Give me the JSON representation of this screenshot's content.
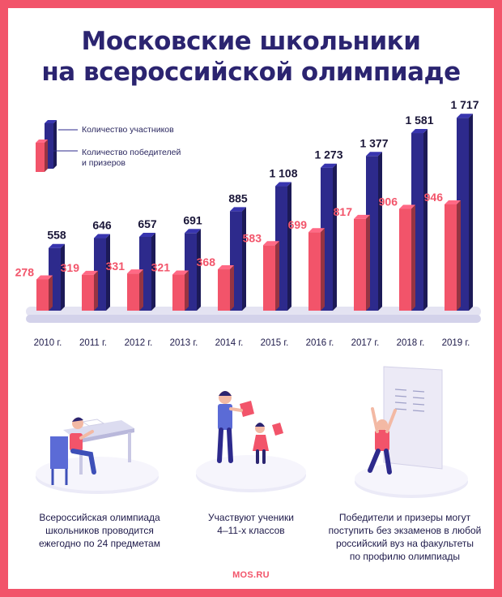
{
  "title_line1": "Московские школьники",
  "title_line2": "на всероссийской олимпиаде",
  "chart_data": {
    "type": "bar",
    "categories": [
      "2010 г.",
      "2011 г.",
      "2012 г.",
      "2013 г.",
      "2014 г.",
      "2015 г.",
      "2016 г.",
      "2017 г.",
      "2018 г.",
      "2019 г."
    ],
    "series": [
      {
        "name": "Количество участников",
        "values": [
          558,
          646,
          657,
          691,
          885,
          1108,
          1273,
          1377,
          1581,
          1717
        ],
        "labels": [
          "558",
          "646",
          "657",
          "691",
          "885",
          "1 108",
          "1 273",
          "1 377",
          "1 581",
          "1 717"
        ],
        "color": "#2d2a8c"
      },
      {
        "name": "Количество победителей и призеров",
        "values": [
          278,
          319,
          331,
          321,
          368,
          583,
          699,
          817,
          906,
          946
        ],
        "labels": [
          "278",
          "319",
          "331",
          "321",
          "368",
          "583",
          "699",
          "817",
          "906",
          "946"
        ],
        "color": "#f2546a"
      }
    ],
    "legend_lines": [
      [
        "Количество участников"
      ],
      [
        "Количество победителей",
        "и призеров"
      ]
    ],
    "legend_position": "top-left",
    "grid": false
  },
  "captions": [
    [
      "Всероссийская олимпиада",
      "школьников проводится",
      "ежегодно по 24 предметам"
    ],
    [
      "Участвуют ученики",
      "4–11-х классов"
    ],
    [
      "Победители и призеры могут",
      "поступить без экзаменов в любой",
      "российский вуз на факультеты",
      "по профилю олимпиады"
    ]
  ],
  "footer": "MOS.RU"
}
